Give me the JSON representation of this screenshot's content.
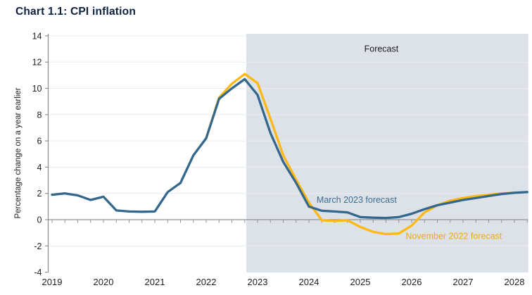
{
  "title": "Chart 1.1: CPI inflation",
  "colors": {
    "title_text": "#0E2240",
    "axis_line": "#8E9398",
    "tick_text": "#1F1F1F",
    "grid_line": "#E9EDF1",
    "grid_line_top": "#D6DBE1",
    "forecast_shading": "#DDE2E9",
    "march_line": "#33678C",
    "november_line": "#FCB813"
  },
  "chart_data": {
    "type": "line",
    "title": "Chart 1.1: CPI inflation",
    "xlabel": "",
    "ylabel": "Percentage change on a year earlier",
    "ylim": [
      -4,
      14
    ],
    "xlim": [
      2018.92,
      2028.27
    ],
    "y_ticks": [
      14,
      12,
      10,
      8,
      6,
      4,
      2,
      0,
      -2,
      -4
    ],
    "x_ticks": [
      2019,
      2020,
      2021,
      2022,
      2023,
      2024,
      2025,
      2026,
      2027,
      2028
    ],
    "x_minor_tick_step": 0.25,
    "grid": true,
    "legend_position": "inline-annotations",
    "forecast_region": {
      "label": "Forecast",
      "x_start": 2022.78,
      "x_end": 2028.27
    },
    "series": [
      {
        "name": "November 2022 forecast",
        "color": "#FCB813",
        "x_start": 2022.0,
        "x_step": 0.25,
        "values": [
          6.2,
          9.3,
          10.35,
          11.1,
          10.4,
          7.7,
          4.9,
          3.05,
          1.3,
          -0.05,
          -0.1,
          -0.05,
          -0.55,
          -0.93,
          -1.1,
          -1.05,
          -0.45,
          0.55,
          1.1,
          1.45,
          1.65,
          1.8,
          1.9,
          2.0,
          2.05
        ]
      },
      {
        "name": "March 2023 forecast",
        "color": "#33678C",
        "x_start": 2019.0,
        "x_step": 0.25,
        "values": [
          1.9,
          2.0,
          1.85,
          1.5,
          1.75,
          0.7,
          0.62,
          0.6,
          0.62,
          2.1,
          2.8,
          4.9,
          6.2,
          9.2,
          10.0,
          10.7,
          9.5,
          6.6,
          4.4,
          2.8,
          1.0,
          0.68,
          0.62,
          0.55,
          0.2,
          0.15,
          0.13,
          0.2,
          0.45,
          0.8,
          1.1,
          1.3,
          1.5,
          1.65,
          1.8,
          1.95,
          2.05,
          2.1
        ]
      }
    ],
    "annotations": [
      {
        "text": "Forecast",
        "x": 2025.41,
        "y": 13.0,
        "color": "#1C1C1C"
      },
      {
        "text": "March 2023 forecast",
        "x": 2024.93,
        "y": 1.5,
        "color": "#3A6E90"
      },
      {
        "text": "November 2022 forecast",
        "x": 2026.82,
        "y": -1.27,
        "color": "#F2A90A"
      }
    ]
  }
}
